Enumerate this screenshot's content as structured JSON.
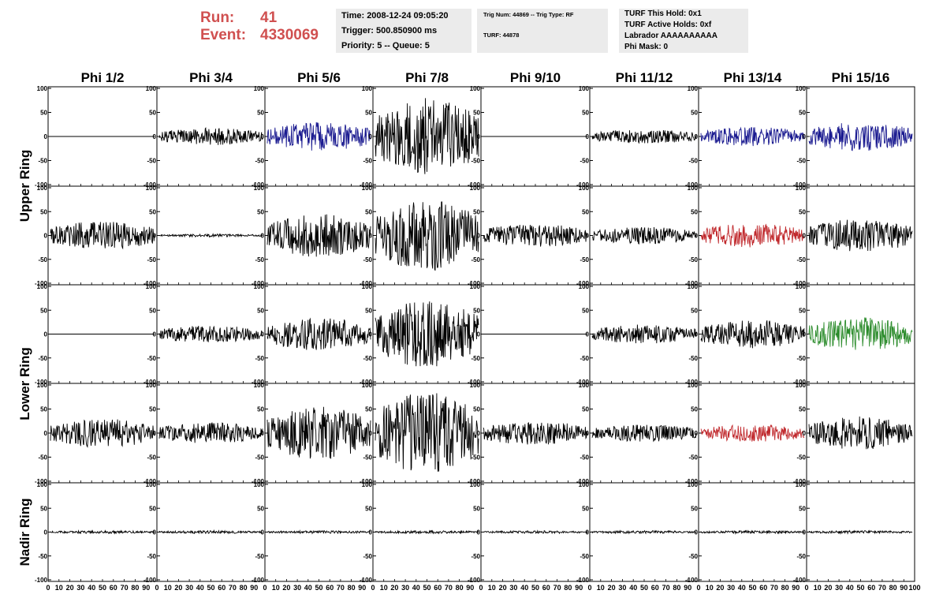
{
  "run_info": {
    "run_label": "Run:",
    "run_value": "41",
    "event_label": "Event:",
    "event_value": "4330069",
    "color": "#d05050"
  },
  "time_box": {
    "time": "Time: 2008-12-24 09:05:20",
    "trigger": "Trigger: 500.850900 ms",
    "priority": "Priority: 5 -- Queue: 5"
  },
  "trig_box": {
    "trig": "Trig Num: 44869 -- Trig Type: RF",
    "turf": "TURF: 44878"
  },
  "turf_box": {
    "hold": "TURF This Hold: 0x1",
    "active": "TURF Active Holds: 0xf",
    "labrador": "Labrador AAAAAAAAAA",
    "phimask": "Phi Mask: 0"
  },
  "chart_data": {
    "type": "line",
    "title": "",
    "ylim": [
      -100,
      100
    ],
    "xlim": [
      0,
      100
    ],
    "yticks": [
      "100",
      "50",
      "0",
      "-50",
      "-100"
    ],
    "xticks": [
      "0",
      "10",
      "20",
      "30",
      "40",
      "50",
      "60",
      "70",
      "80",
      "90",
      "100"
    ],
    "columns": [
      "Phi 1/2",
      "Phi 3/4",
      "Phi 5/6",
      "Phi 7/8",
      "Phi 9/10",
      "Phi 11/12",
      "Phi 13/14",
      "Phi 15/16"
    ],
    "ring_labels": [
      "Upper Ring",
      "Lower Ring",
      "Nadir Ring"
    ],
    "colors": {
      "black": "#000000",
      "blue": "#1a1a90",
      "red": "#c0282c",
      "green": "#2c8c2c"
    },
    "traces": [
      [
        {
          "amp": 0,
          "color": "black"
        },
        {
          "amp": 18,
          "color": "black"
        },
        {
          "amp": 30,
          "color": "blue"
        },
        {
          "amp": 80,
          "color": "black"
        },
        {
          "amp": 0,
          "color": "black"
        },
        {
          "amp": 15,
          "color": "black"
        },
        {
          "amp": 20,
          "color": "blue"
        },
        {
          "amp": 30,
          "color": "blue"
        }
      ],
      [
        {
          "amp": 30,
          "color": "black"
        },
        {
          "amp": 3,
          "color": "black"
        },
        {
          "amp": 45,
          "color": "black"
        },
        {
          "amp": 75,
          "color": "black"
        },
        {
          "amp": 25,
          "color": "black"
        },
        {
          "amp": 18,
          "color": "black"
        },
        {
          "amp": 25,
          "color": "red"
        },
        {
          "amp": 35,
          "color": "black"
        }
      ],
      [
        {
          "amp": 0,
          "color": "black"
        },
        {
          "amp": 18,
          "color": "black"
        },
        {
          "amp": 35,
          "color": "black"
        },
        {
          "amp": 70,
          "color": "black"
        },
        {
          "amp": 0,
          "color": "black"
        },
        {
          "amp": 20,
          "color": "black"
        },
        {
          "amp": 30,
          "color": "black"
        },
        {
          "amp": 35,
          "color": "green"
        }
      ],
      [
        {
          "amp": 30,
          "color": "black"
        },
        {
          "amp": 22,
          "color": "black"
        },
        {
          "amp": 55,
          "color": "black"
        },
        {
          "amp": 85,
          "color": "black"
        },
        {
          "amp": 25,
          "color": "black"
        },
        {
          "amp": 18,
          "color": "black"
        },
        {
          "amp": 18,
          "color": "red"
        },
        {
          "amp": 35,
          "color": "black"
        }
      ],
      [
        {
          "amp": 3,
          "color": "black"
        },
        {
          "amp": 3,
          "color": "black"
        },
        {
          "amp": 3,
          "color": "black"
        },
        {
          "amp": 3,
          "color": "black"
        },
        {
          "amp": 3,
          "color": "black"
        },
        {
          "amp": 3,
          "color": "black"
        },
        {
          "amp": 3,
          "color": "black"
        },
        {
          "amp": 3,
          "color": "black"
        }
      ]
    ]
  }
}
